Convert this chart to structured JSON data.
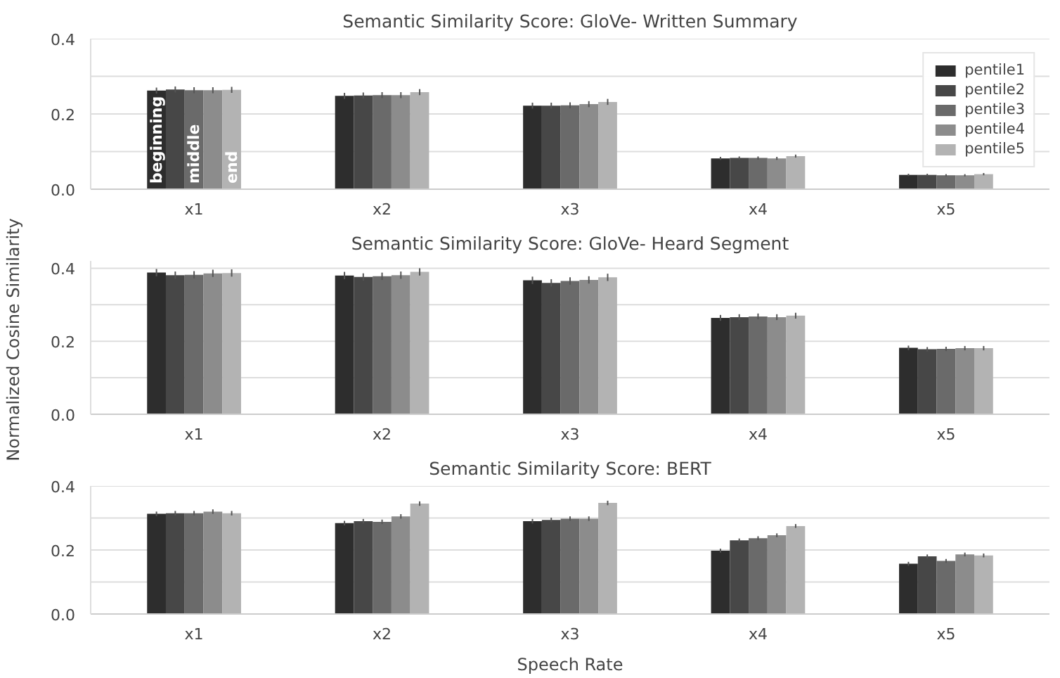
{
  "chart_data": [
    {
      "type": "bar",
      "title": "Semantic Similarity Score: GloVe- Written Summary",
      "categories": [
        "x1",
        "x2",
        "x3",
        "x4",
        "x5"
      ],
      "ylim": [
        0,
        0.4
      ],
      "yticks": [
        {
          "value": 0,
          "label": "0.0"
        },
        {
          "value": 0.1,
          "label": null
        },
        {
          "value": 0.2,
          "label": "0.2"
        },
        {
          "value": 0.3,
          "label": null
        },
        {
          "value": 0.4,
          "label": "0.4"
        }
      ],
      "grid": "y",
      "legend": "top right",
      "annotations": [
        "beginning",
        "middle",
        "end"
      ],
      "series": [
        {
          "name": "pentile1",
          "color": "#2d2d2d",
          "values": [
            0.262,
            0.248,
            0.222,
            0.082,
            0.038
          ],
          "errors": [
            0.008,
            0.008,
            0.008,
            0.004,
            0.003
          ]
        },
        {
          "name": "pentile2",
          "color": "#474747",
          "values": [
            0.265,
            0.249,
            0.222,
            0.083,
            0.038
          ],
          "errors": [
            0.008,
            0.008,
            0.008,
            0.004,
            0.003
          ]
        },
        {
          "name": "pentile3",
          "color": "#6a6a6a",
          "values": [
            0.263,
            0.25,
            0.223,
            0.083,
            0.037
          ],
          "errors": [
            0.008,
            0.008,
            0.008,
            0.004,
            0.003
          ]
        },
        {
          "name": "pentile4",
          "color": "#8c8c8c",
          "values": [
            0.263,
            0.25,
            0.226,
            0.082,
            0.037
          ],
          "errors": [
            0.008,
            0.008,
            0.008,
            0.004,
            0.003
          ]
        },
        {
          "name": "pentile5",
          "color": "#b3b3b3",
          "values": [
            0.264,
            0.258,
            0.232,
            0.088,
            0.04
          ],
          "errors": [
            0.008,
            0.008,
            0.008,
            0.004,
            0.003
          ]
        }
      ]
    },
    {
      "type": "bar",
      "title": "Semantic Similarity Score: GloVe- Heard Segment",
      "ylabel": "Normalized Cosine Similarity",
      "categories": [
        "x1",
        "x2",
        "x3",
        "x4",
        "x5"
      ],
      "ylim": [
        0,
        0.42
      ],
      "yticks": [
        {
          "value": 0,
          "label": "0.0"
        },
        {
          "value": 0.1,
          "label": null
        },
        {
          "value": 0.2,
          "label": "0.2"
        },
        {
          "value": 0.3,
          "label": null
        },
        {
          "value": 0.4,
          "label": "0.4"
        }
      ],
      "grid": "y",
      "series": [
        {
          "color": "#2d2d2d",
          "values": [
            0.388,
            0.38,
            0.367,
            0.264,
            0.182
          ],
          "errors": [
            0.01,
            0.01,
            0.01,
            0.008,
            0.006
          ]
        },
        {
          "color": "#474747",
          "values": [
            0.381,
            0.376,
            0.36,
            0.266,
            0.178
          ],
          "errors": [
            0.01,
            0.01,
            0.01,
            0.008,
            0.006
          ]
        },
        {
          "color": "#6a6a6a",
          "values": [
            0.382,
            0.378,
            0.365,
            0.268,
            0.179
          ],
          "errors": [
            0.01,
            0.01,
            0.01,
            0.008,
            0.006
          ]
        },
        {
          "color": "#8c8c8c",
          "values": [
            0.386,
            0.381,
            0.368,
            0.266,
            0.181
          ],
          "errors": [
            0.01,
            0.01,
            0.01,
            0.008,
            0.006
          ]
        },
        {
          "color": "#b3b3b3",
          "values": [
            0.387,
            0.39,
            0.375,
            0.27,
            0.181
          ],
          "errors": [
            0.01,
            0.01,
            0.01,
            0.008,
            0.006
          ]
        }
      ]
    },
    {
      "type": "bar",
      "title": "Semantic Similarity Score: BERT",
      "xlabel": "Speech Rate",
      "categories": [
        "x1",
        "x2",
        "x3",
        "x4",
        "x5"
      ],
      "ylim": [
        0,
        0.4
      ],
      "yticks": [
        {
          "value": 0,
          "label": "0.0"
        },
        {
          "value": 0.1,
          "label": null
        },
        {
          "value": 0.2,
          "label": "0.2"
        },
        {
          "value": 0.3,
          "label": null
        },
        {
          "value": 0.4,
          "label": "0.4"
        }
      ],
      "grid": "y",
      "series": [
        {
          "color": "#2d2d2d",
          "values": [
            0.313,
            0.284,
            0.29,
            0.198,
            0.157
          ],
          "errors": [
            0.007,
            0.007,
            0.007,
            0.006,
            0.006
          ]
        },
        {
          "color": "#474747",
          "values": [
            0.315,
            0.29,
            0.294,
            0.23,
            0.18
          ],
          "errors": [
            0.007,
            0.007,
            0.007,
            0.006,
            0.006
          ]
        },
        {
          "color": "#6a6a6a",
          "values": [
            0.315,
            0.288,
            0.298,
            0.237,
            0.166
          ],
          "errors": [
            0.007,
            0.007,
            0.007,
            0.006,
            0.006
          ]
        },
        {
          "color": "#8c8c8c",
          "values": [
            0.32,
            0.305,
            0.298,
            0.246,
            0.186
          ],
          "errors": [
            0.007,
            0.007,
            0.007,
            0.006,
            0.006
          ]
        },
        {
          "color": "#b3b3b3",
          "values": [
            0.315,
            0.345,
            0.347,
            0.275,
            0.183
          ],
          "errors": [
            0.007,
            0.007,
            0.007,
            0.006,
            0.006
          ]
        }
      ]
    }
  ]
}
